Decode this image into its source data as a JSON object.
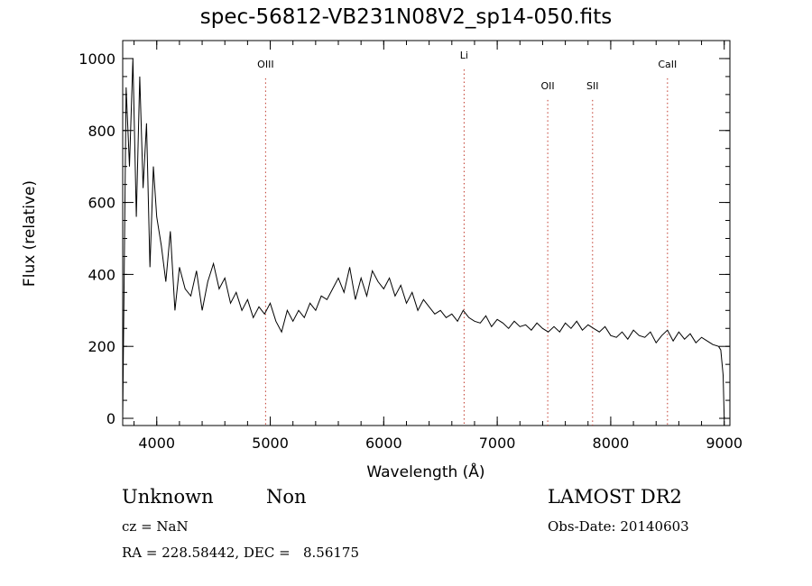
{
  "title": "spec-56812-VB231N08V2_sp14-050.fits",
  "footer": {
    "class_label": "Unknown",
    "subclass_label": "Non",
    "survey": "LAMOST DR2",
    "cz": "cz = NaN",
    "obs_date": "Obs-Date: 20140603",
    "coords": "RA = 228.58442, DEC =   8.56175"
  },
  "chart_data": {
    "type": "line",
    "title": "spec-56812-VB231N08V2_sp14-050.fits",
    "xlabel": "Wavelength (Å)",
    "ylabel": "Flux (relative)",
    "xlim": [
      3700,
      9050
    ],
    "ylim": [
      -20,
      1050
    ],
    "xticks": [
      4000,
      5000,
      6000,
      7000,
      8000,
      9000
    ],
    "yticks": [
      0,
      200,
      400,
      600,
      800,
      1000
    ],
    "x_minor_step": 200,
    "y_minor_step": 50,
    "line_color": "#000000",
    "marker_color": "#c0392b",
    "series": [
      {
        "x": [
          3700,
          3730,
          3760,
          3790,
          3820,
          3850,
          3880,
          3910,
          3940,
          3970,
          4000,
          4040,
          4080,
          4120,
          4160,
          4200,
          4250,
          4300,
          4350,
          4400,
          4450,
          4500,
          4550,
          4600,
          4650,
          4700,
          4750,
          4800,
          4850,
          4900,
          4950,
          5000,
          5050,
          5100,
          5150,
          5200,
          5250,
          5300,
          5350,
          5400,
          5450,
          5500,
          5550,
          5600,
          5650,
          5700,
          5750,
          5800,
          5850,
          5900,
          5950,
          6000,
          6050,
          6100,
          6150,
          6200,
          6250,
          6300,
          6350,
          6400,
          6450,
          6500,
          6550,
          6600,
          6650,
          6700,
          6750,
          6800,
          6850,
          6900,
          6950,
          7000,
          7050,
          7100,
          7150,
          7200,
          7250,
          7300,
          7350,
          7400,
          7450,
          7500,
          7550,
          7600,
          7650,
          7700,
          7750,
          7800,
          7850,
          7900,
          7950,
          8000,
          8050,
          8100,
          8150,
          8200,
          8250,
          8300,
          8350,
          8400,
          8450,
          8500,
          8550,
          8600,
          8650,
          8700,
          8750,
          8800,
          8850,
          8900,
          8950,
          8970,
          8990,
          9000
        ],
        "y": [
          0,
          920,
          700,
          1000,
          560,
          950,
          640,
          820,
          420,
          700,
          560,
          480,
          380,
          520,
          300,
          420,
          360,
          340,
          410,
          300,
          380,
          430,
          360,
          390,
          320,
          350,
          300,
          330,
          280,
          310,
          290,
          320,
          270,
          240,
          300,
          270,
          300,
          280,
          320,
          300,
          340,
          330,
          360,
          390,
          350,
          420,
          330,
          390,
          340,
          410,
          380,
          360,
          390,
          340,
          370,
          320,
          350,
          300,
          330,
          310,
          290,
          300,
          280,
          290,
          270,
          300,
          280,
          270,
          265,
          285,
          255,
          275,
          265,
          250,
          270,
          255,
          260,
          245,
          265,
          250,
          240,
          255,
          240,
          265,
          250,
          270,
          245,
          260,
          250,
          240,
          255,
          230,
          225,
          240,
          220,
          245,
          230,
          225,
          240,
          210,
          230,
          245,
          215,
          240,
          220,
          235,
          210,
          225,
          215,
          205,
          200,
          190,
          120,
          0
        ]
      }
    ],
    "annotations": [
      {
        "label": "OIII",
        "x": 4959,
        "y": 975
      },
      {
        "label": "Li",
        "x": 6708,
        "y": 1000
      },
      {
        "label": "OII",
        "x": 7445,
        "y": 915
      },
      {
        "label": "SII",
        "x": 7840,
        "y": 915
      },
      {
        "label": "CaII",
        "x": 8500,
        "y": 975
      }
    ]
  }
}
